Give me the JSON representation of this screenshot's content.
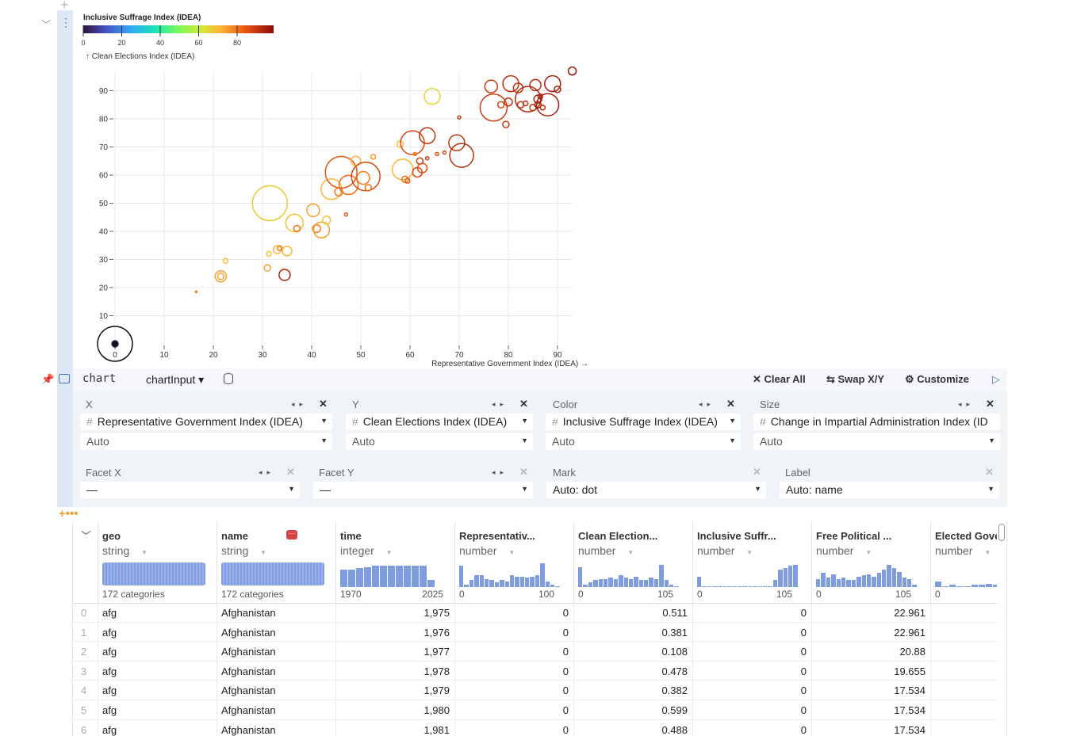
{
  "chart_data": {
    "type": "scatter",
    "color_legend": {
      "title": "Inclusive Suffrage Index  (IDEA)",
      "ticks": [
        "0",
        "20",
        "40",
        "60",
        "80"
      ]
    },
    "ylabel": "↑ Clean Elections Index (IDEA)",
    "xlabel": "Representative Government Index (IDEA) →",
    "xticks": [
      "0",
      "10",
      "20",
      "30",
      "40",
      "50",
      "60",
      "70",
      "80",
      "90"
    ],
    "yticks": [
      "10",
      "20",
      "30",
      "40",
      "50",
      "60",
      "70",
      "80",
      "90"
    ],
    "xlim": [
      0,
      93
    ],
    "ylim": [
      0,
      97
    ],
    "grid": true,
    "points": [
      [
        0,
        0,
        22,
        90
      ],
      [
        0,
        0,
        4,
        2
      ],
      [
        16.5,
        18.5,
        1,
        80
      ],
      [
        21.5,
        24,
        7,
        75
      ],
      [
        21.5,
        24,
        4,
        75
      ],
      [
        22.5,
        29.5,
        3,
        70
      ],
      [
        31.3,
        32,
        3,
        70
      ],
      [
        31,
        27,
        4,
        75
      ],
      [
        31.5,
        50,
        22,
        68
      ],
      [
        33,
        33.5,
        5,
        72
      ],
      [
        33.5,
        34,
        3,
        80
      ],
      [
        34.5,
        24.5,
        7,
        95
      ],
      [
        35,
        33,
        6,
        72
      ],
      [
        36.5,
        43,
        11,
        70
      ],
      [
        37,
        41,
        4,
        82
      ],
      [
        40.3,
        47.5,
        8,
        75
      ],
      [
        41,
        41,
        5,
        80
      ],
      [
        42,
        40.5,
        10,
        75
      ],
      [
        43,
        44,
        5,
        70
      ],
      [
        44,
        55,
        13,
        72
      ],
      [
        45.5,
        54,
        5,
        80
      ],
      [
        46,
        61,
        20,
        85
      ],
      [
        47.5,
        56.5,
        12,
        82
      ],
      [
        47,
        46,
        2,
        85
      ],
      [
        49,
        65,
        6,
        72
      ],
      [
        50.5,
        59,
        8,
        80
      ],
      [
        51,
        59.5,
        18,
        88
      ],
      [
        51.5,
        55.5,
        4,
        82
      ],
      [
        52.5,
        66.5,
        3,
        76
      ],
      [
        58,
        71,
        4,
        70
      ],
      [
        58.5,
        62,
        13,
        72
      ],
      [
        59,
        58.5,
        4,
        82
      ],
      [
        59.5,
        58,
        3,
        85
      ],
      [
        60.5,
        71.5,
        15,
        88
      ],
      [
        61,
        67.5,
        2,
        80
      ],
      [
        61.5,
        61,
        6,
        88
      ],
      [
        62,
        65,
        4,
        90
      ],
      [
        62.5,
        62.5,
        6,
        86
      ],
      [
        63.5,
        74,
        10,
        92
      ],
      [
        63.5,
        66,
        2,
        90
      ],
      [
        65.5,
        67.5,
        2,
        85
      ],
      [
        64.5,
        88,
        10,
        65
      ],
      [
        67,
        68,
        2,
        88
      ],
      [
        69.5,
        71.5,
        10,
        92
      ],
      [
        70,
        80.5,
        2,
        90
      ],
      [
        70.5,
        67,
        15,
        93
      ],
      [
        76.5,
        91.5,
        8,
        90
      ],
      [
        77,
        84,
        17,
        90
      ],
      [
        78.5,
        85,
        4,
        88
      ],
      [
        79.5,
        78,
        4,
        90
      ],
      [
        80,
        86,
        5,
        92
      ],
      [
        80.5,
        92.5,
        10,
        92
      ],
      [
        82,
        91,
        6,
        92
      ],
      [
        82.5,
        85,
        4,
        93
      ],
      [
        83.5,
        85.5,
        3,
        92
      ],
      [
        84,
        87,
        16,
        94
      ],
      [
        85,
        84,
        4,
        92
      ],
      [
        85.5,
        92,
        7,
        94
      ],
      [
        86,
        87,
        5,
        95
      ],
      [
        86,
        85,
        4,
        96
      ],
      [
        86.5,
        88,
        3,
        95
      ],
      [
        87,
        84,
        3,
        93
      ],
      [
        88,
        85,
        14,
        96
      ],
      [
        89,
        92.5,
        10,
        96
      ],
      [
        90,
        90.5,
        4,
        96
      ],
      [
        93,
        97,
        5,
        98
      ]
    ],
    "colors": {
      "low": "#3b2a93",
      "mid": "#f5e34a",
      "high": "#8c0c0c"
    }
  },
  "toolbar": {
    "cell_name": "chart",
    "input": "chartInput ▾",
    "clear_all": "Clear All",
    "swap": "Swap X/Y",
    "customize": "Customize"
  },
  "channels": {
    "x": {
      "label": "X",
      "field": "Representative Government Index (IDEA)",
      "scale": "Auto"
    },
    "y": {
      "label": "Y",
      "field": "Clean Elections Index (IDEA)",
      "scale": "Auto"
    },
    "color": {
      "label": "Color",
      "field": "Inclusive Suffrage Index (IDEA)",
      "scale": "Auto"
    },
    "size": {
      "label": "Size",
      "field": "Change in Impartial Administration Index (ID",
      "scale": "Auto"
    },
    "facet_x": {
      "label": "Facet X",
      "value": "—"
    },
    "facet_y": {
      "label": "Facet Y",
      "value": "—"
    },
    "mark": {
      "label": "Mark",
      "value": "Auto: dot"
    },
    "label": {
      "label": "Label",
      "value": "Auto: name"
    }
  },
  "table": {
    "columns": [
      {
        "name": "geo",
        "type": "string",
        "summary": "172 categories"
      },
      {
        "name": "name",
        "type": "string",
        "summary": "172 categories"
      },
      {
        "name": "time",
        "type": "integer",
        "min": "1970",
        "max": "2025",
        "hist": [
          0.75,
          0.75,
          0.8,
          0.85,
          0.9,
          0.9,
          0.9,
          0.9,
          0.9,
          0.9,
          0.9,
          0.3
        ]
      },
      {
        "name": "Representativ...",
        "type": "number",
        "min": "0",
        "max": "100",
        "hist": [
          0.9,
          0.1,
          0.3,
          0.5,
          0.5,
          0.35,
          0.3,
          0.2,
          0.3,
          0.25,
          0.5,
          0.45,
          0.45,
          0.4,
          0.45,
          0.5,
          1,
          0.25,
          0.1,
          0.05
        ]
      },
      {
        "name": "Clean Election...",
        "type": "number",
        "min": "0",
        "max": "105",
        "hist": [
          0.85,
          0.1,
          0.2,
          0.3,
          0.35,
          0.35,
          0.4,
          0.35,
          0.5,
          0.4,
          0.35,
          0.45,
          0.3,
          0.3,
          0.4,
          0.35,
          0.95,
          0.3,
          0.1,
          0.05
        ]
      },
      {
        "name": "Inclusive Suffr...",
        "type": "number",
        "min": "0",
        "max": "105",
        "hist": [
          0.45,
          0.05,
          0.05,
          0.05,
          0.05,
          0.05,
          0.05,
          0.05,
          0.05,
          0.05,
          0.05,
          0.05,
          0.05,
          0.05,
          0.05,
          0.3,
          0.75,
          0.8,
          0.9,
          0.95
        ]
      },
      {
        "name": "Free Political ...",
        "type": "number",
        "min": "0",
        "max": "105",
        "hist": [
          0.35,
          0.6,
          0.4,
          0.55,
          0.35,
          0.4,
          0.3,
          0.3,
          0.45,
          0.5,
          0.55,
          0.45,
          0.6,
          0.75,
          0.95,
          0.8,
          0.65,
          0.4,
          0.35,
          0.1
        ]
      },
      {
        "name": "Elected Gove",
        "type": "number",
        "min": "0",
        "hist": [
          0.25,
          0.05,
          0.1,
          0.05,
          0.05,
          0.1,
          0.1,
          0.15,
          0.1,
          0.15,
          0.2,
          0.25,
          0.2,
          0.3
        ]
      }
    ],
    "rows": [
      [
        "0",
        "afg",
        "Afghanistan",
        "1,975",
        "0",
        "0.511",
        "0",
        "22.961"
      ],
      [
        "1",
        "afg",
        "Afghanistan",
        "1,976",
        "0",
        "0.381",
        "0",
        "22.961"
      ],
      [
        "2",
        "afg",
        "Afghanistan",
        "1,977",
        "0",
        "0.108",
        "0",
        "20.88"
      ],
      [
        "3",
        "afg",
        "Afghanistan",
        "1,978",
        "0",
        "0.478",
        "0",
        "19.655"
      ],
      [
        "4",
        "afg",
        "Afghanistan",
        "1,979",
        "0",
        "0.382",
        "0",
        "17.534"
      ],
      [
        "5",
        "afg",
        "Afghanistan",
        "1,980",
        "0",
        "0.599",
        "0",
        "17.534"
      ],
      [
        "6",
        "afg",
        "Afghanistan",
        "1,981",
        "0",
        "0.488",
        "0",
        "17.534"
      ]
    ]
  }
}
